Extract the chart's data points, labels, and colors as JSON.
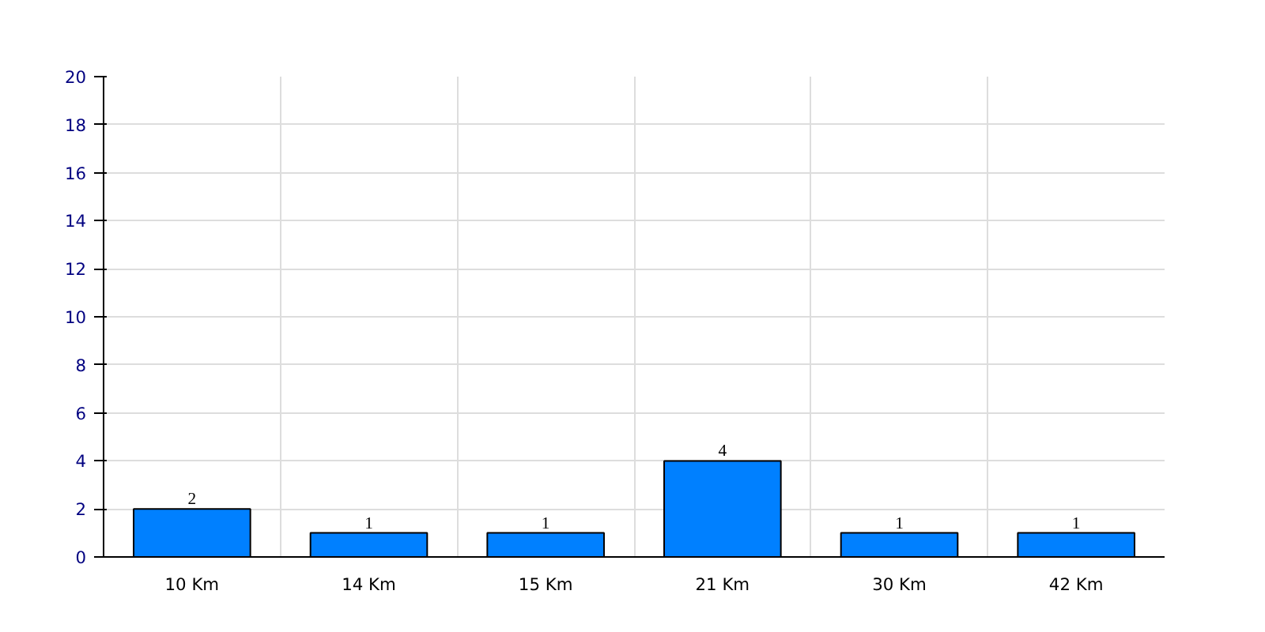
{
  "chart_data": {
    "type": "bar",
    "categories": [
      "10 Km",
      "14 Km",
      "15 Km",
      "21 Km",
      "30 Km",
      "42 Km"
    ],
    "values": [
      2,
      1,
      1,
      4,
      1,
      1
    ],
    "color": "#0080ff",
    "ylim": [
      0,
      20
    ],
    "yticks": [
      0,
      2,
      4,
      6,
      8,
      10,
      12,
      14,
      16,
      18,
      20
    ],
    "grid": true,
    "data_labels": true
  }
}
